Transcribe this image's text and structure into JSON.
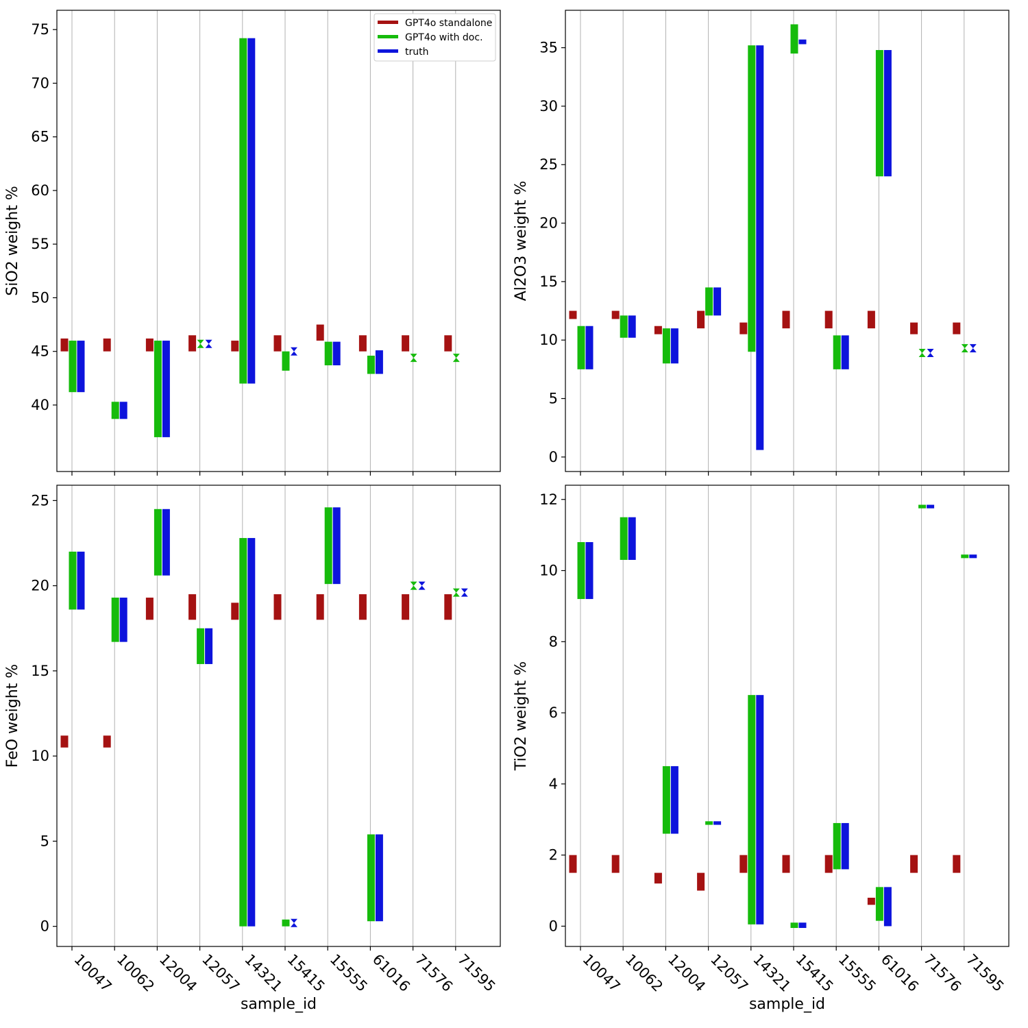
{
  "colors": {
    "standalone": "#a51212",
    "with_doc": "#16bb0c",
    "truth": "#0d14dc",
    "grid": "#b0b0b0",
    "axis": "#000000"
  },
  "legend": {
    "standalone": "GPT4o standalone",
    "with_doc": "GPT4o with doc.",
    "truth": "truth"
  },
  "chart_data": [
    {
      "type": "range-bar",
      "title": "",
      "ylabel": "SiO2 weight %",
      "xlabel": "",
      "ylim": [
        33.8,
        76.8
      ],
      "yticks": [
        40,
        45,
        50,
        55,
        60,
        65,
        70,
        75
      ],
      "legend_position": "top-right",
      "series": [
        {
          "name": "GPT4o standalone",
          "ranges": [
            [
              45,
              46.2
            ],
            [
              45,
              46.2
            ],
            [
              45,
              46.2
            ],
            [
              45,
              46.5
            ],
            [
              45,
              46
            ],
            [
              45,
              46.5
            ],
            [
              46,
              47.5
            ],
            [
              45,
              46.5
            ],
            [
              45,
              46.5
            ],
            [
              45,
              46.5
            ]
          ]
        },
        {
          "name": "GPT4o with doc.",
          "ranges": [
            [
              41.2,
              46
            ],
            [
              38.7,
              40.3
            ],
            [
              37,
              46
            ],
            [
              45.6,
              45.8
            ],
            [
              42,
              74.2
            ],
            [
              43.2,
              45
            ],
            [
              43.7,
              45.9
            ],
            [
              42.9,
              44.6
            ],
            [
              44.3,
              44.5
            ],
            [
              44.3,
              44.5
            ]
          ]
        },
        {
          "name": "truth",
          "ranges": [
            [
              41.2,
              46
            ],
            [
              38.7,
              40.3
            ],
            [
              37,
              46
            ],
            [
              45.6,
              45.8
            ],
            [
              42,
              74.2
            ],
            [
              44.9,
              45.1
            ],
            [
              43.7,
              45.9
            ],
            [
              42.9,
              45.1
            ],
            null,
            null
          ]
        }
      ]
    },
    {
      "type": "range-bar",
      "title": "",
      "ylabel": "Al2O3 weight %",
      "xlabel": "",
      "ylim": [
        -1.24,
        38.2
      ],
      "yticks": [
        0,
        5,
        10,
        15,
        20,
        25,
        30,
        35
      ],
      "legend_position": "",
      "series": [
        {
          "name": "GPT4o standalone",
          "ranges": [
            [
              11.8,
              12.5
            ],
            [
              11.8,
              12.5
            ],
            [
              10.5,
              11.2
            ],
            [
              11,
              12.5
            ],
            [
              10.5,
              11.5
            ],
            [
              11,
              12.5
            ],
            [
              11,
              12.5
            ],
            [
              11,
              12.5
            ],
            [
              10.5,
              11.5
            ],
            [
              10.5,
              11.5
            ]
          ]
        },
        {
          "name": "GPT4o with doc.",
          "ranges": [
            [
              7.5,
              11.2
            ],
            [
              10.2,
              12.1
            ],
            [
              8,
              11
            ],
            [
              12.1,
              14.5
            ],
            [
              9,
              35.2
            ],
            [
              34.5,
              37
            ],
            [
              7.5,
              10.4
            ],
            [
              24,
              34.8
            ],
            [
              8.8,
              9
            ],
            [
              9.2,
              9.4
            ]
          ]
        },
        {
          "name": "truth",
          "ranges": [
            [
              7.5,
              11.2
            ],
            [
              10.2,
              12.1
            ],
            [
              8,
              11
            ],
            [
              12.1,
              14.5
            ],
            [
              0.6,
              35.2
            ],
            [
              35.3,
              35.7
            ],
            [
              7.5,
              10.4
            ],
            [
              24,
              34.8
            ],
            [
              8.8,
              9
            ],
            [
              9.2,
              9.4
            ]
          ]
        }
      ]
    },
    {
      "type": "range-bar",
      "title": "",
      "ylabel": "FeO weight %",
      "xlabel": "sample_id",
      "ylim": [
        -1.18,
        25.9
      ],
      "yticks": [
        0,
        5,
        10,
        15,
        20,
        25
      ],
      "categories": [
        "10047",
        "10062",
        "12004",
        "12057",
        "14321",
        "15415",
        "15555",
        "61016",
        "71576",
        "71595"
      ],
      "legend_position": "",
      "series": [
        {
          "name": "GPT4o standalone",
          "ranges": [
            [
              10.5,
              11.2
            ],
            [
              10.5,
              11.2
            ],
            [
              18,
              19.3
            ],
            [
              18,
              19.5
            ],
            [
              18,
              19
            ],
            [
              18,
              19.5
            ],
            [
              18,
              19.5
            ],
            [
              18,
              19.5
            ],
            [
              18,
              19.5
            ],
            [
              18,
              19.5
            ]
          ]
        },
        {
          "name": "GPT4o with doc.",
          "ranges": [
            [
              18.6,
              22
            ],
            [
              16.7,
              19.3
            ],
            [
              20.6,
              24.5
            ],
            [
              15.4,
              17.5
            ],
            [
              0,
              22.8
            ],
            [
              0,
              0.4
            ],
            [
              20.1,
              24.6
            ],
            [
              0.3,
              5.4
            ],
            [
              19.9,
              20.1
            ],
            [
              19.5,
              19.7
            ]
          ]
        },
        {
          "name": "truth",
          "ranges": [
            [
              18.6,
              22
            ],
            [
              16.7,
              19.3
            ],
            [
              20.6,
              24.5
            ],
            [
              15.4,
              17.5
            ],
            [
              0,
              22.8
            ],
            [
              0.1,
              0.3
            ],
            [
              20.1,
              24.6
            ],
            [
              0.3,
              5.4
            ],
            [
              19.9,
              20.1
            ],
            [
              19.5,
              19.7
            ]
          ]
        }
      ]
    },
    {
      "type": "range-bar",
      "title": "",
      "ylabel": "TiO2 weight %",
      "xlabel": "sample_id",
      "ylim": [
        -0.57,
        12.4
      ],
      "yticks": [
        0,
        2,
        4,
        6,
        8,
        10,
        12
      ],
      "categories": [
        "10047",
        "10062",
        "12004",
        "12057",
        "14321",
        "15415",
        "15555",
        "61016",
        "71576",
        "71595"
      ],
      "legend_position": "",
      "series": [
        {
          "name": "GPT4o standalone",
          "ranges": [
            [
              1.5,
              2
            ],
            [
              1.5,
              2
            ],
            [
              1.2,
              1.5
            ],
            [
              1,
              1.5
            ],
            [
              1.5,
              2
            ],
            [
              1.5,
              2
            ],
            [
              1.5,
              2
            ],
            [
              0.6,
              0.8
            ],
            [
              1.5,
              2
            ],
            [
              1.5,
              2
            ]
          ]
        },
        {
          "name": "GPT4o with doc.",
          "ranges": [
            [
              9.2,
              10.8
            ],
            [
              10.3,
              11.5
            ],
            [
              2.6,
              4.5
            ],
            [
              2.85,
              2.95
            ],
            [
              0.05,
              6.5
            ],
            [
              -0.05,
              0.1
            ],
            [
              1.6,
              2.9
            ],
            [
              0.15,
              1.1
            ],
            [
              11.75,
              11.85
            ],
            [
              10.35,
              10.45
            ]
          ]
        },
        {
          "name": "truth",
          "ranges": [
            [
              9.2,
              10.8
            ],
            [
              10.3,
              11.5
            ],
            [
              2.6,
              4.5
            ],
            [
              2.85,
              2.95
            ],
            [
              0.05,
              6.5
            ],
            [
              -0.05,
              0.1
            ],
            [
              1.6,
              2.9
            ],
            [
              0,
              1.1
            ],
            [
              11.75,
              11.85
            ],
            [
              10.35,
              10.45
            ]
          ]
        }
      ]
    }
  ]
}
